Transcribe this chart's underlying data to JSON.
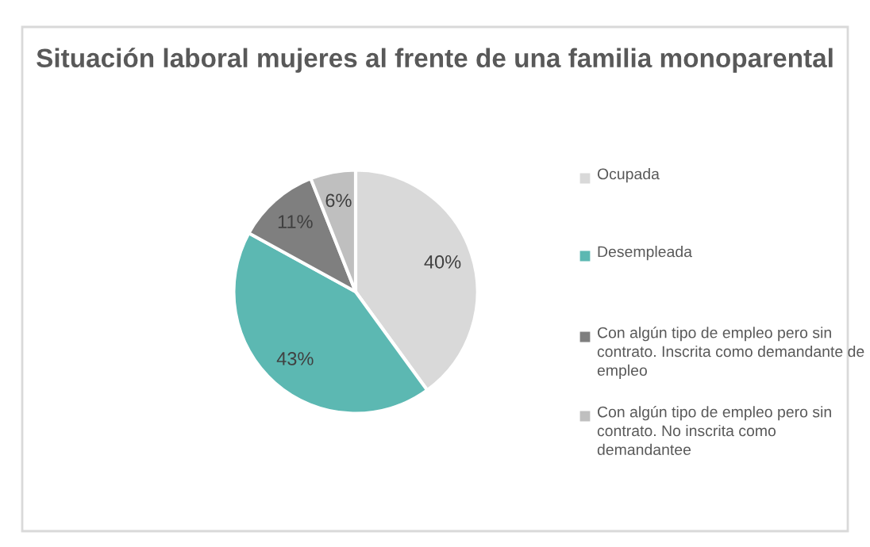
{
  "chart_data": {
    "type": "pie",
    "title": "Situación laboral mujeres al frente de una familia monoparental",
    "categories": [
      "Ocupada",
      "Desempleada",
      "Con algún tipo de empleo pero sin contrato. Inscrita como demandante de empleo",
      "Con algún tipo de empleo pero sin contrato. No inscrita como demandantee"
    ],
    "values": [
      40,
      43,
      11,
      6
    ],
    "colors": [
      "#d9d9d9",
      "#5cb8b2",
      "#7f7f7f",
      "#bfbfbf"
    ],
    "value_labels": [
      "40%",
      "43%",
      "11%",
      "6%"
    ],
    "legend": "right"
  }
}
